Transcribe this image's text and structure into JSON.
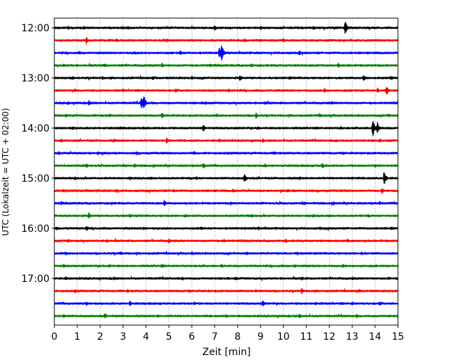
{
  "chart_data": {
    "type": "line",
    "title": "",
    "xlabel": "Zeit  [min]",
    "ylabel": "UTC (Lokalzeit = UTC + 02:00)",
    "xlim": [
      0,
      15
    ],
    "x_ticks": [
      0,
      1,
      2,
      3,
      4,
      5,
      6,
      7,
      8,
      9,
      10,
      11,
      12,
      13,
      14,
      15
    ],
    "x_tick_labels": [
      "0",
      "1",
      "2",
      "3",
      "4",
      "5",
      "6",
      "7",
      "8",
      "9",
      "10",
      "11",
      "12",
      "13",
      "14",
      "15"
    ],
    "y_tick_labels": [
      "12:00",
      "13:00",
      "14:00",
      "15:00",
      "16:00",
      "17:00"
    ],
    "y_tick_trace_index": [
      0,
      4,
      8,
      12,
      16,
      20
    ],
    "trace_interval_minutes": 15,
    "trace_count": 24,
    "x_grid": true,
    "grid_style": "dotted",
    "legend": "none",
    "trace_colors": [
      "#000000",
      "#ff0000",
      "#0000ff",
      "#008000"
    ],
    "series": [
      {
        "start": "12:00",
        "events": [
          [
            0.6,
            3
          ],
          [
            1.3,
            3
          ],
          [
            3.2,
            3
          ],
          [
            7.0,
            4
          ],
          [
            9.0,
            3
          ],
          [
            11.3,
            3
          ],
          [
            12.7,
            11
          ]
        ]
      },
      {
        "start": "12:15",
        "events": [
          [
            1.4,
            6
          ],
          [
            2.7,
            3
          ],
          [
            4.9,
            3
          ],
          [
            8.3,
            3
          ],
          [
            10.0,
            3
          ]
        ]
      },
      {
        "start": "12:30",
        "events": [
          [
            1.1,
            3
          ],
          [
            3.5,
            3
          ],
          [
            5.5,
            4
          ],
          [
            7.2,
            9
          ],
          [
            7.3,
            14
          ],
          [
            10.7,
            4
          ]
        ]
      },
      {
        "start": "12:45",
        "events": [
          [
            0.4,
            3
          ],
          [
            2.2,
            3
          ],
          [
            4.7,
            4
          ],
          [
            6.8,
            3
          ],
          [
            8.6,
            3
          ],
          [
            12.4,
            4
          ]
        ]
      },
      {
        "start": "13:00",
        "events": [
          [
            0.8,
            3
          ],
          [
            2.1,
            3
          ],
          [
            4.3,
            3
          ],
          [
            6.0,
            3
          ],
          [
            8.1,
            5
          ],
          [
            10.3,
            3
          ],
          [
            13.5,
            5
          ],
          [
            14.7,
            4
          ]
        ]
      },
      {
        "start": "13:15",
        "events": [
          [
            0.9,
            3
          ],
          [
            3.0,
            3
          ],
          [
            5.3,
            3
          ],
          [
            7.6,
            3
          ],
          [
            11.8,
            4
          ],
          [
            14.1,
            4
          ],
          [
            14.5,
            8
          ]
        ]
      },
      {
        "start": "13:30",
        "events": [
          [
            0.6,
            3
          ],
          [
            1.5,
            4
          ],
          [
            3.8,
            9
          ],
          [
            3.9,
            13
          ],
          [
            6.6,
            3
          ],
          [
            9.2,
            3
          ],
          [
            12.1,
            3
          ]
        ]
      },
      {
        "start": "13:45",
        "events": [
          [
            0.5,
            3
          ],
          [
            2.4,
            3
          ],
          [
            4.7,
            5
          ],
          [
            7.1,
            3
          ],
          [
            8.8,
            5
          ],
          [
            11.6,
            3
          ],
          [
            14.6,
            3
          ]
        ]
      },
      {
        "start": "14:00",
        "events": [
          [
            0.8,
            3
          ],
          [
            2.9,
            3
          ],
          [
            3.9,
            3
          ],
          [
            6.5,
            6
          ],
          [
            8.9,
            3
          ],
          [
            12.5,
            3
          ],
          [
            13.9,
            14
          ],
          [
            14.1,
            9
          ]
        ]
      },
      {
        "start": "14:15",
        "events": [
          [
            0.3,
            3
          ],
          [
            2.6,
            3
          ],
          [
            4.9,
            5
          ],
          [
            7.2,
            3
          ],
          [
            9.1,
            3
          ],
          [
            12.3,
            3
          ],
          [
            14.2,
            3
          ]
        ]
      },
      {
        "start": "14:30",
        "events": [
          [
            0.2,
            3
          ],
          [
            1.9,
            3
          ],
          [
            3.6,
            3
          ],
          [
            6.1,
            3
          ],
          [
            9.6,
            3
          ],
          [
            12.6,
            3
          ]
        ]
      },
      {
        "start": "14:45",
        "events": [
          [
            1.4,
            4
          ],
          [
            3.5,
            3
          ],
          [
            6.5,
            5
          ],
          [
            9.2,
            3
          ],
          [
            11.7,
            5
          ],
          [
            14.0,
            3
          ]
        ]
      },
      {
        "start": "15:00",
        "events": [
          [
            0.9,
            3
          ],
          [
            3.3,
            3
          ],
          [
            6.2,
            3
          ],
          [
            8.3,
            7
          ],
          [
            10.7,
            3
          ],
          [
            13.0,
            3
          ],
          [
            14.4,
            12
          ]
        ]
      },
      {
        "start": "15:15",
        "events": [
          [
            0.4,
            3
          ],
          [
            2.7,
            3
          ],
          [
            5.2,
            3
          ],
          [
            7.8,
            3
          ],
          [
            10.2,
            3
          ],
          [
            14.3,
            5
          ]
        ]
      },
      {
        "start": "15:30",
        "events": [
          [
            0.3,
            3
          ],
          [
            2.5,
            3
          ],
          [
            4.8,
            5
          ],
          [
            7.7,
            3
          ],
          [
            10.9,
            3
          ],
          [
            12.2,
            3
          ],
          [
            14.2,
            3
          ]
        ]
      },
      {
        "start": "15:45",
        "events": [
          [
            1.5,
            5
          ],
          [
            3.3,
            3
          ],
          [
            5.7,
            3
          ],
          [
            8.6,
            3
          ],
          [
            11.3,
            3
          ],
          [
            13.7,
            3
          ]
        ]
      },
      {
        "start": "16:00",
        "events": [
          [
            0.1,
            3
          ],
          [
            1.4,
            4
          ],
          [
            3.9,
            3
          ],
          [
            6.4,
            3
          ],
          [
            8.9,
            3
          ],
          [
            11.6,
            3
          ],
          [
            14.7,
            3
          ]
        ]
      },
      {
        "start": "16:15",
        "events": [
          [
            0.6,
            3
          ],
          [
            2.3,
            3
          ],
          [
            5.0,
            4
          ],
          [
            7.4,
            3
          ],
          [
            10.1,
            3
          ],
          [
            12.8,
            3
          ]
        ]
      },
      {
        "start": "16:30",
        "events": [
          [
            0.5,
            3
          ],
          [
            2.9,
            3
          ],
          [
            6.0,
            3
          ],
          [
            8.4,
            3
          ],
          [
            10.6,
            3
          ],
          [
            13.4,
            3
          ]
        ]
      },
      {
        "start": "16:45",
        "events": [
          [
            0.4,
            3
          ],
          [
            2.4,
            3
          ],
          [
            4.7,
            3
          ],
          [
            7.3,
            3
          ],
          [
            10.5,
            3
          ],
          [
            12.6,
            3
          ]
        ]
      },
      {
        "start": "17:00",
        "events": [
          [
            0.5,
            3
          ],
          [
            2.6,
            3
          ],
          [
            5.6,
            3
          ],
          [
            7.9,
            3
          ],
          [
            10.8,
            3
          ],
          [
            13.0,
            3
          ],
          [
            14.6,
            3
          ]
        ]
      },
      {
        "start": "17:15",
        "events": [
          [
            0.9,
            3
          ],
          [
            3.2,
            3
          ],
          [
            5.9,
            3
          ],
          [
            8.8,
            3
          ],
          [
            10.8,
            5
          ],
          [
            13.3,
            3
          ]
        ]
      },
      {
        "start": "17:30",
        "events": [
          [
            1.4,
            3
          ],
          [
            3.3,
            4
          ],
          [
            6.1,
            3
          ],
          [
            9.1,
            5
          ],
          [
            11.4,
            3
          ],
          [
            13.0,
            3
          ],
          [
            14.2,
            3
          ]
        ]
      },
      {
        "start": "17:45",
        "events": [
          [
            0.4,
            3
          ],
          [
            2.2,
            4
          ],
          [
            4.5,
            3
          ],
          [
            7.5,
            3
          ],
          [
            10.7,
            4
          ],
          [
            13.2,
            3
          ]
        ]
      }
    ]
  }
}
